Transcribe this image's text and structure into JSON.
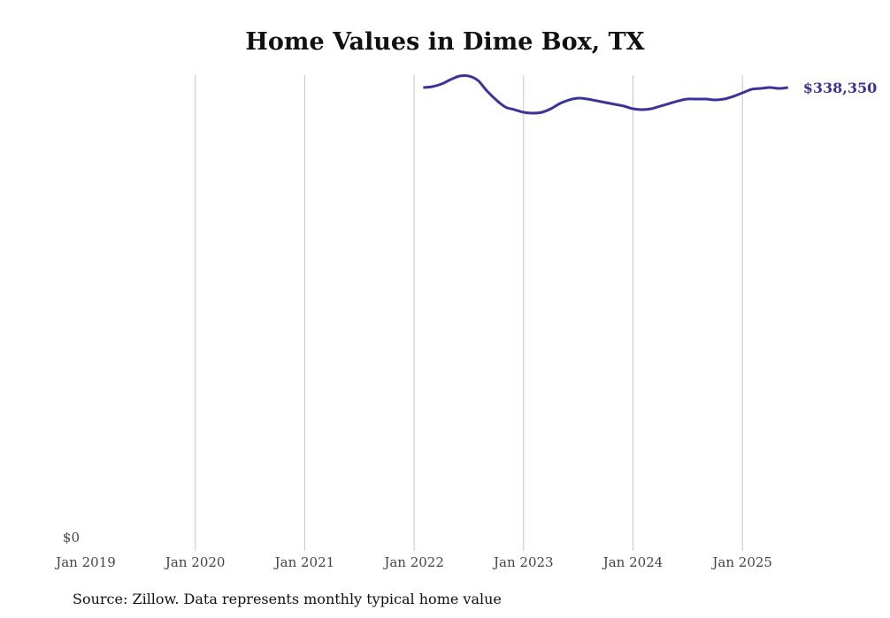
{
  "chart_data": {
    "type": "line",
    "title": "Home Values in Dime Box, TX",
    "source": "Source: Zillow. Data represents monthly typical home value",
    "xlabel": "",
    "ylabel": "",
    "x_ticks": [
      "Jan 2019",
      "Jan 2020",
      "Jan 2021",
      "Jan 2022",
      "Jan 2023",
      "Jan 2024",
      "Jan 2025"
    ],
    "y_ticks": [
      "$0"
    ],
    "ylim": [
      0,
      347400
    ],
    "xlim": [
      "2019-01",
      "2025-06"
    ],
    "grid": "vertical",
    "end_label": "$338,350",
    "line_color": "#3a3399",
    "series": [
      {
        "name": "Typical home value",
        "x": [
          "2022-02",
          "2022-03",
          "2022-04",
          "2022-05",
          "2022-06",
          "2022-07",
          "2022-08",
          "2022-09",
          "2022-10",
          "2022-11",
          "2022-12",
          "2023-01",
          "2023-02",
          "2023-03",
          "2023-04",
          "2023-05",
          "2023-06",
          "2023-07",
          "2023-08",
          "2023-09",
          "2023-10",
          "2023-11",
          "2023-12",
          "2024-01",
          "2024-02",
          "2024-03",
          "2024-04",
          "2024-05",
          "2024-06",
          "2024-07",
          "2024-08",
          "2024-09",
          "2024-10",
          "2024-11",
          "2024-12",
          "2025-01",
          "2025-02",
          "2025-03",
          "2025-04",
          "2025-05",
          "2025-06"
        ],
        "values": [
          338350,
          339000,
          340930,
          344160,
          346740,
          346740,
          343510,
          335760,
          329300,
          324140,
          322200,
          320270,
          319620,
          320270,
          322850,
          326720,
          329300,
          330600,
          329950,
          328660,
          327370,
          326080,
          324790,
          322850,
          322200,
          322850,
          324790,
          326720,
          328660,
          329950,
          329950,
          329950,
          329300,
          329950,
          331890,
          334470,
          337050,
          337700,
          338350,
          337700,
          338350
        ]
      }
    ]
  }
}
